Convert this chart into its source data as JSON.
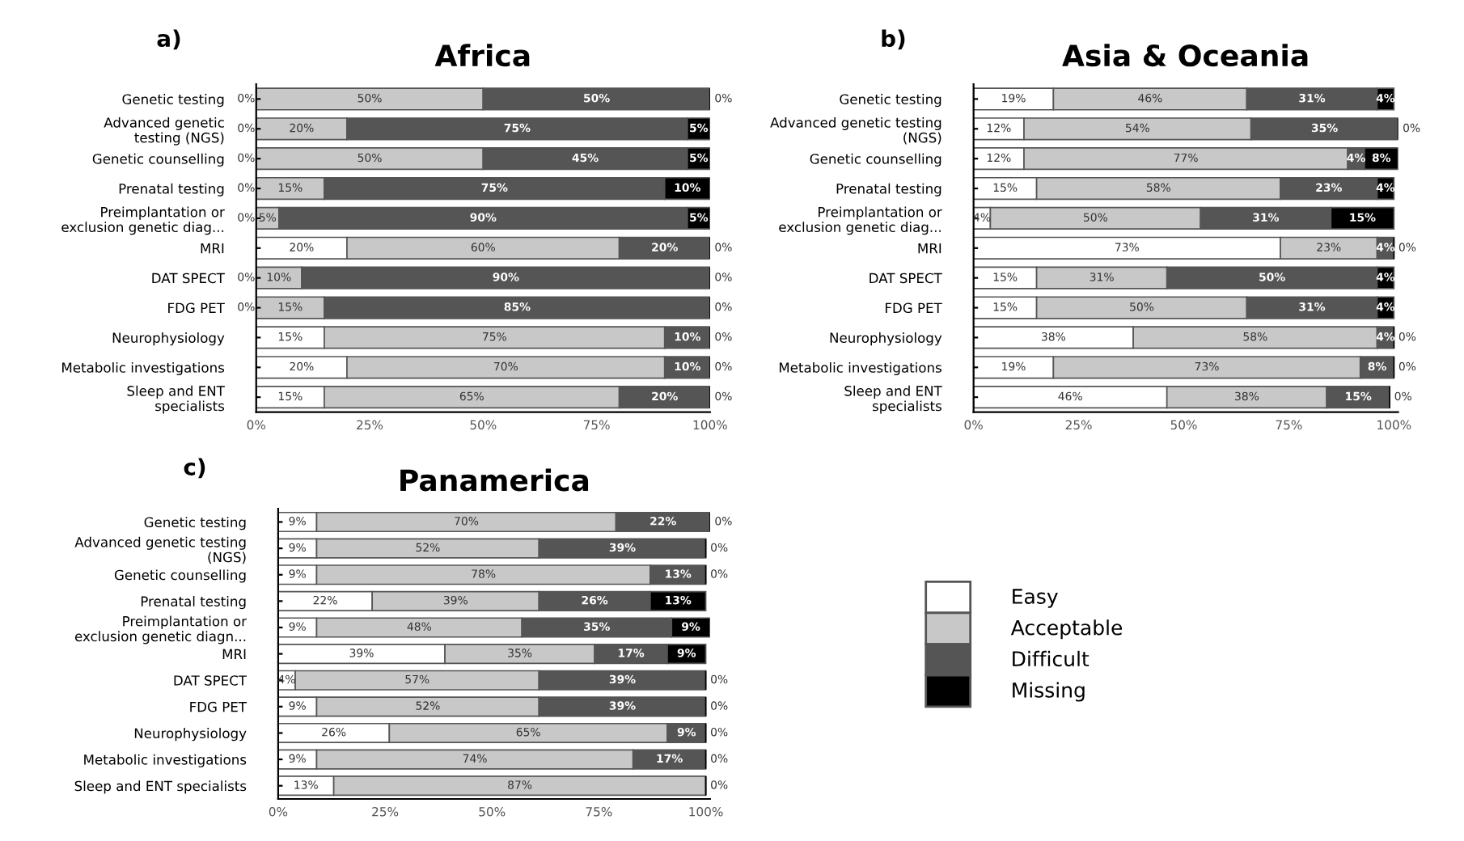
{
  "chart_data": [
    {
      "type": "bar",
      "orientation": "horizontal",
      "stacked": true,
      "title": "Africa",
      "annotations": [
        "a)"
      ],
      "legend": "bottom right",
      "categories": [
        "Genetic testing",
        "Advanced genetic\ntesting (NGS)",
        "Genetic counselling",
        "Prenatal testing",
        "Preimplantation or\nexclusion genetic diag...",
        "MRI",
        "DAT SPECT",
        "FDG PET",
        "Neurophysiology",
        "Metabolic investigations",
        "Sleep and ENT\nspecialists"
      ],
      "xlim": [
        0,
        100
      ],
      "xticks": [
        {
          "value": 0,
          "label": "0%"
        },
        {
          "value": 25,
          "label": "25%"
        },
        {
          "value": 50,
          "label": "50%"
        },
        {
          "value": 75,
          "label": "75%"
        },
        {
          "value": 100,
          "label": "100%"
        }
      ],
      "series": [
        {
          "name": "Easy",
          "color": "#ffffff",
          "values": [
            0,
            0,
            0,
            0,
            0,
            20,
            0,
            0,
            15,
            20,
            15
          ],
          "value_labels": [
            "0%",
            "0%",
            "0%",
            "0%",
            "0%",
            "20%",
            "0%",
            "0%",
            "15%",
            "20%",
            "15%"
          ]
        },
        {
          "name": "Acceptable",
          "color": "#c8c8c8",
          "values": [
            50,
            20,
            50,
            15,
            5,
            60,
            10,
            15,
            75,
            70,
            65
          ],
          "value_labels": [
            "50%",
            "20%",
            "50%",
            "15%",
            "5%",
            "60%",
            "10%",
            "15%",
            "75%",
            "70%",
            "65%"
          ]
        },
        {
          "name": "Difficult",
          "color": "#555555",
          "values": [
            50,
            75,
            45,
            75,
            90,
            20,
            90,
            85,
            10,
            10,
            20
          ],
          "value_labels": [
            "50%",
            "75%",
            "45%",
            "75%",
            "90%",
            "20%",
            "90%",
            "85%",
            "10%",
            "10%",
            "20%"
          ]
        },
        {
          "name": "Missing",
          "color": "#000000",
          "values": [
            0,
            5,
            5,
            10,
            5,
            0,
            0,
            0,
            0,
            0,
            0
          ],
          "value_labels": [
            "0%",
            "5%",
            "5%",
            "10%",
            "5%",
            "0%",
            "0%",
            "0%",
            "0%",
            "0%",
            "0%"
          ]
        }
      ]
    },
    {
      "type": "bar",
      "orientation": "horizontal",
      "stacked": true,
      "title": "Asia & Oceania",
      "annotations": [
        "b)"
      ],
      "categories": [
        "Genetic testing",
        "Advanced genetic testing\n(NGS)",
        "Genetic counselling",
        "Prenatal testing",
        "Preimplantation or\nexclusion genetic diag...",
        "MRI",
        "DAT SPECT",
        "FDG PET",
        "Neurophysiology",
        "Metabolic investigations",
        "Sleep and ENT\nspecialists"
      ],
      "xlim": [
        0,
        101
      ],
      "xticks": [
        {
          "value": 0,
          "label": "0%"
        },
        {
          "value": 25,
          "label": "25%"
        },
        {
          "value": 50,
          "label": "50%"
        },
        {
          "value": 75,
          "label": "75%"
        },
        {
          "value": 100,
          "label": "100%"
        }
      ],
      "series": [
        {
          "color": "#ffffff",
          "values": [
            19,
            12,
            12,
            15,
            4,
            73,
            15,
            15,
            38,
            19,
            46
          ],
          "value_labels": [
            "19%",
            "12%",
            "12%",
            "15%",
            "4%",
            "73%",
            "15%",
            "15%",
            "38%",
            "19%",
            "46%"
          ]
        },
        {
          "color": "#c8c8c8",
          "values": [
            46,
            54,
            77,
            58,
            50,
            23,
            31,
            50,
            58,
            73,
            38
          ],
          "value_labels": [
            "46%",
            "54%",
            "77%",
            "58%",
            "50%",
            "23%",
            "31%",
            "50%",
            "58%",
            "73%",
            "38%"
          ]
        },
        {
          "color": "#555555",
          "values": [
            31,
            35,
            4,
            23,
            31,
            4,
            50,
            31,
            4,
            8,
            15
          ],
          "value_labels": [
            "31%",
            "35%",
            "4%",
            "23%",
            "31%",
            "4%",
            "50%",
            "31%",
            "4%",
            "8%",
            "15%"
          ]
        },
        {
          "color": "#000000",
          "values": [
            4,
            0,
            8,
            4,
            15,
            0,
            4,
            4,
            0,
            0,
            0
          ],
          "value_labels": [
            "4%",
            "0%",
            "8%",
            "4%",
            "15%",
            "0%",
            "4%",
            "4%",
            "0%",
            "0%",
            "0%"
          ]
        }
      ]
    },
    {
      "type": "bar",
      "orientation": "horizontal",
      "stacked": true,
      "title": "Panamerica",
      "annotations": [
        "c)"
      ],
      "categories": [
        "Genetic testing",
        "Advanced genetic testing\n(NGS)",
        "Genetic counselling",
        "Prenatal testing",
        "Preimplantation or\nexclusion genetic diagn...",
        "MRI",
        "DAT SPECT",
        "FDG PET",
        "Neurophysiology",
        "Metabolic investigations",
        "Sleep and ENT specialists"
      ],
      "xlim": [
        0,
        101
      ],
      "xticks": [
        {
          "value": 0,
          "label": "0%"
        },
        {
          "value": 25,
          "label": "25%"
        },
        {
          "value": 50,
          "label": "50%"
        },
        {
          "value": 75,
          "label": "75%"
        },
        {
          "value": 100,
          "label": "100%"
        }
      ],
      "series": [
        {
          "color": "#ffffff",
          "values": [
            9,
            9,
            9,
            22,
            9,
            39,
            4,
            9,
            26,
            9,
            13
          ],
          "value_labels": [
            "9%",
            "9%",
            "9%",
            "22%",
            "9%",
            "39%",
            "4%",
            "9%",
            "26%",
            "9%",
            "13%"
          ]
        },
        {
          "color": "#c8c8c8",
          "values": [
            70,
            52,
            78,
            39,
            48,
            35,
            57,
            52,
            65,
            74,
            87
          ],
          "value_labels": [
            "70%",
            "52%",
            "78%",
            "39%",
            "48%",
            "35%",
            "57%",
            "52%",
            "65%",
            "74%",
            "87%"
          ]
        },
        {
          "color": "#555555",
          "values": [
            22,
            39,
            13,
            26,
            35,
            17,
            39,
            39,
            9,
            17,
            0
          ],
          "value_labels": [
            "22%",
            "39%",
            "13%",
            "26%",
            "35%",
            "17%",
            "39%",
            "39%",
            "9%",
            "17%",
            null
          ]
        },
        {
          "color": "#000000",
          "values": [
            0,
            0,
            0,
            13,
            9,
            9,
            0,
            0,
            0,
            0,
            0
          ],
          "value_labels": [
            "0%",
            "0%",
            "0%",
            "13%",
            "9%",
            "9%",
            "0%",
            "0%",
            "0%",
            "0%",
            "0%"
          ]
        }
      ]
    }
  ]
}
